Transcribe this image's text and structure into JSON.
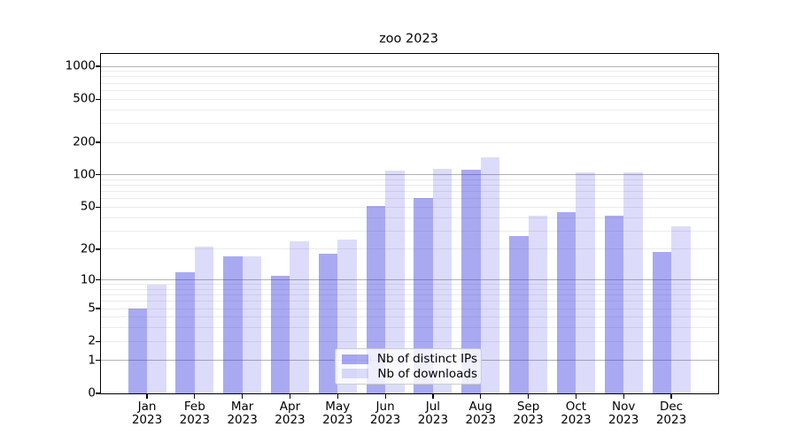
{
  "title": "zoo 2023",
  "chart_data": {
    "type": "bar",
    "title": "zoo 2023",
    "categories": [
      "Jan 2023",
      "Feb 2023",
      "Mar 2023",
      "Apr 2023",
      "May 2023",
      "Jun 2023",
      "Jul 2023",
      "Aug 2023",
      "Sep 2023",
      "Oct 2023",
      "Nov 2023",
      "Dec 2023"
    ],
    "months": [
      "Jan",
      "Feb",
      "Mar",
      "Apr",
      "May",
      "Jun",
      "Jul",
      "Aug",
      "Sep",
      "Oct",
      "Nov",
      "Dec"
    ],
    "year": "2023",
    "series": [
      {
        "name": "Nb of distinct IPs",
        "color": "rgba(50,50,225,0.42)",
        "values": [
          5,
          12,
          17,
          11,
          18,
          51,
          61,
          111,
          27,
          45,
          42,
          19
        ]
      },
      {
        "name": "Nb of downloads",
        "color": "rgba(50,50,225,0.17)",
        "values": [
          9,
          21,
          17,
          24,
          25,
          110,
          113,
          145,
          42,
          106,
          105,
          33
        ]
      }
    ],
    "xlabel": "",
    "ylabel": "",
    "yscale": "log1p",
    "ylim": [
      0,
      1300
    ],
    "y_ticks": [
      0,
      1,
      2,
      5,
      10,
      20,
      50,
      100,
      200,
      500,
      1000
    ],
    "y_minor_gridlines": [
      2,
      3,
      4,
      5,
      6,
      7,
      8,
      9,
      20,
      30,
      40,
      50,
      60,
      70,
      80,
      90,
      200,
      300,
      400,
      500,
      600,
      700,
      800,
      900
    ],
    "y_major_gridlines": [
      1,
      10,
      100,
      1000
    ],
    "grid": true,
    "legend_position": "lower center"
  },
  "colors": {
    "bar_distinct_ips": "rgba(50,50,225,0.42)",
    "bar_downloads": "rgba(50,50,225,0.17)",
    "major_grid": "#b3b3b3",
    "minor_grid": "#ebebeb",
    "spine": "#000000",
    "legend_border": "#cccccc",
    "legend_bg": "rgba(255,255,255,0.8)"
  }
}
